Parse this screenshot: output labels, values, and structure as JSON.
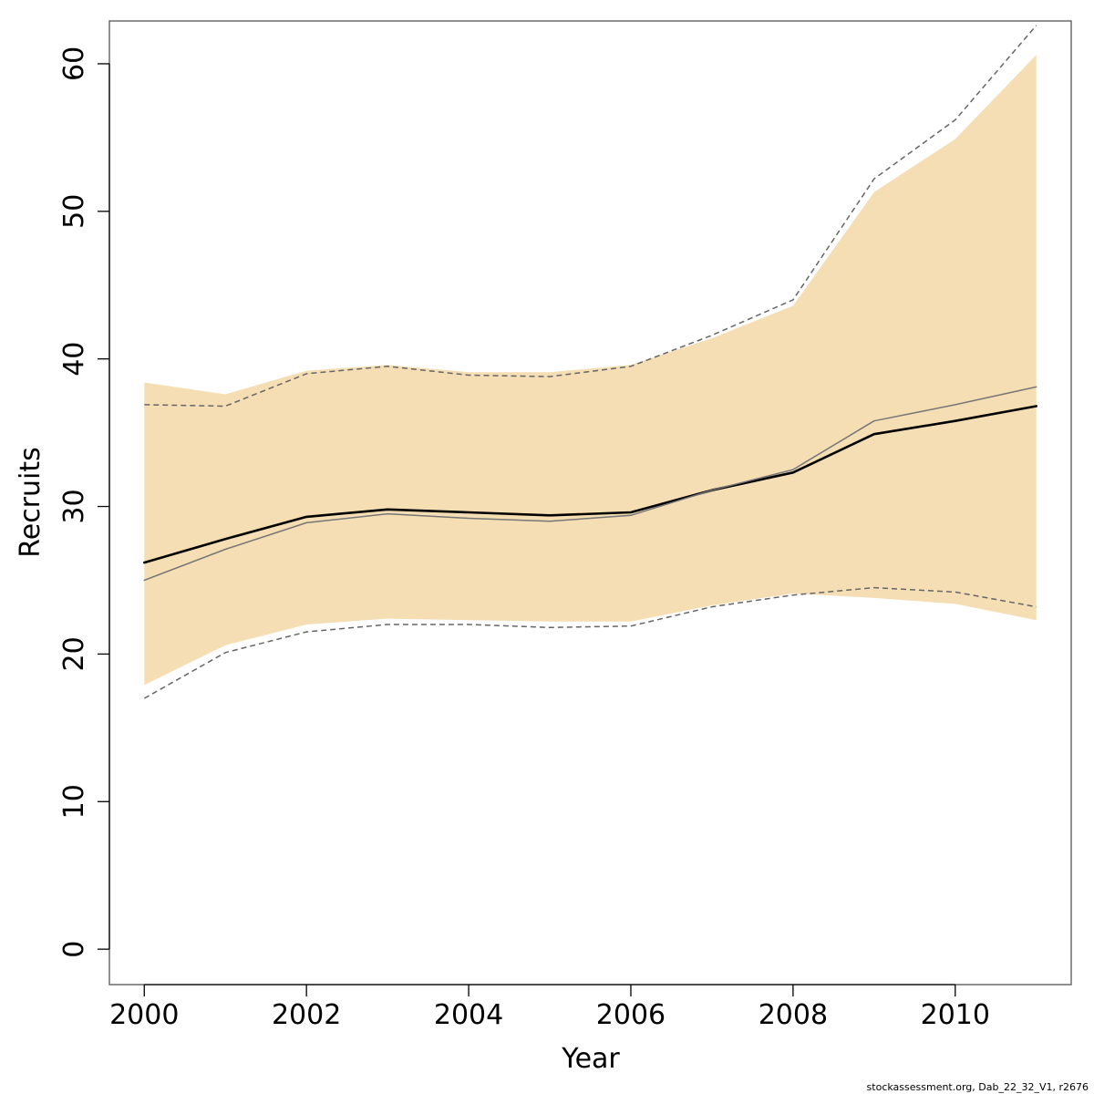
{
  "chart_data": {
    "type": "line",
    "xlabel": "Year",
    "ylabel": "Recruits",
    "xlim": [
      1999.57,
      2011.43
    ],
    "ylim": [
      -2.4,
      62.9
    ],
    "x_ticks": [
      2000,
      2002,
      2004,
      2006,
      2008,
      2010
    ],
    "y_ticks": [
      0,
      10,
      20,
      30,
      40,
      50,
      60
    ],
    "x": [
      2000,
      2001,
      2002,
      2003,
      2004,
      2005,
      2006,
      2007,
      2008,
      2009,
      2010,
      2011
    ],
    "band": {
      "color": "#f5deb3",
      "lower": [
        17.9,
        20.6,
        22.0,
        22.4,
        22.3,
        22.2,
        22.2,
        23.3,
        24.1,
        23.8,
        23.4,
        22.3
      ],
      "upper": [
        38.4,
        37.6,
        39.2,
        39.6,
        39.1,
        39.1,
        39.6,
        41.4,
        43.6,
        51.3,
        54.9,
        60.6
      ]
    },
    "series": [
      {
        "style": "solid-thick",
        "color": "#000000",
        "values": [
          26.2,
          27.8,
          29.3,
          29.8,
          29.6,
          29.4,
          29.6,
          31.1,
          32.3,
          34.9,
          35.8,
          36.8
        ]
      },
      {
        "style": "solid-thin",
        "color": "#777777",
        "values": [
          25.0,
          27.1,
          28.9,
          29.5,
          29.2,
          29.0,
          29.4,
          31.1,
          32.5,
          35.8,
          36.9,
          38.1
        ]
      },
      {
        "style": "dashed",
        "color": "#666666",
        "values": [
          36.9,
          36.8,
          39.0,
          39.5,
          38.9,
          38.8,
          39.5,
          41.6,
          44.0,
          52.2,
          56.2,
          62.6
        ]
      },
      {
        "style": "dashed",
        "color": "#666666",
        "values": [
          17.0,
          20.1,
          21.5,
          22.0,
          22.0,
          21.8,
          21.9,
          23.2,
          24.0,
          24.5,
          24.2,
          23.2
        ]
      }
    ]
  },
  "footer": "stockassessment.org, Dab_22_32_V1, r2676"
}
